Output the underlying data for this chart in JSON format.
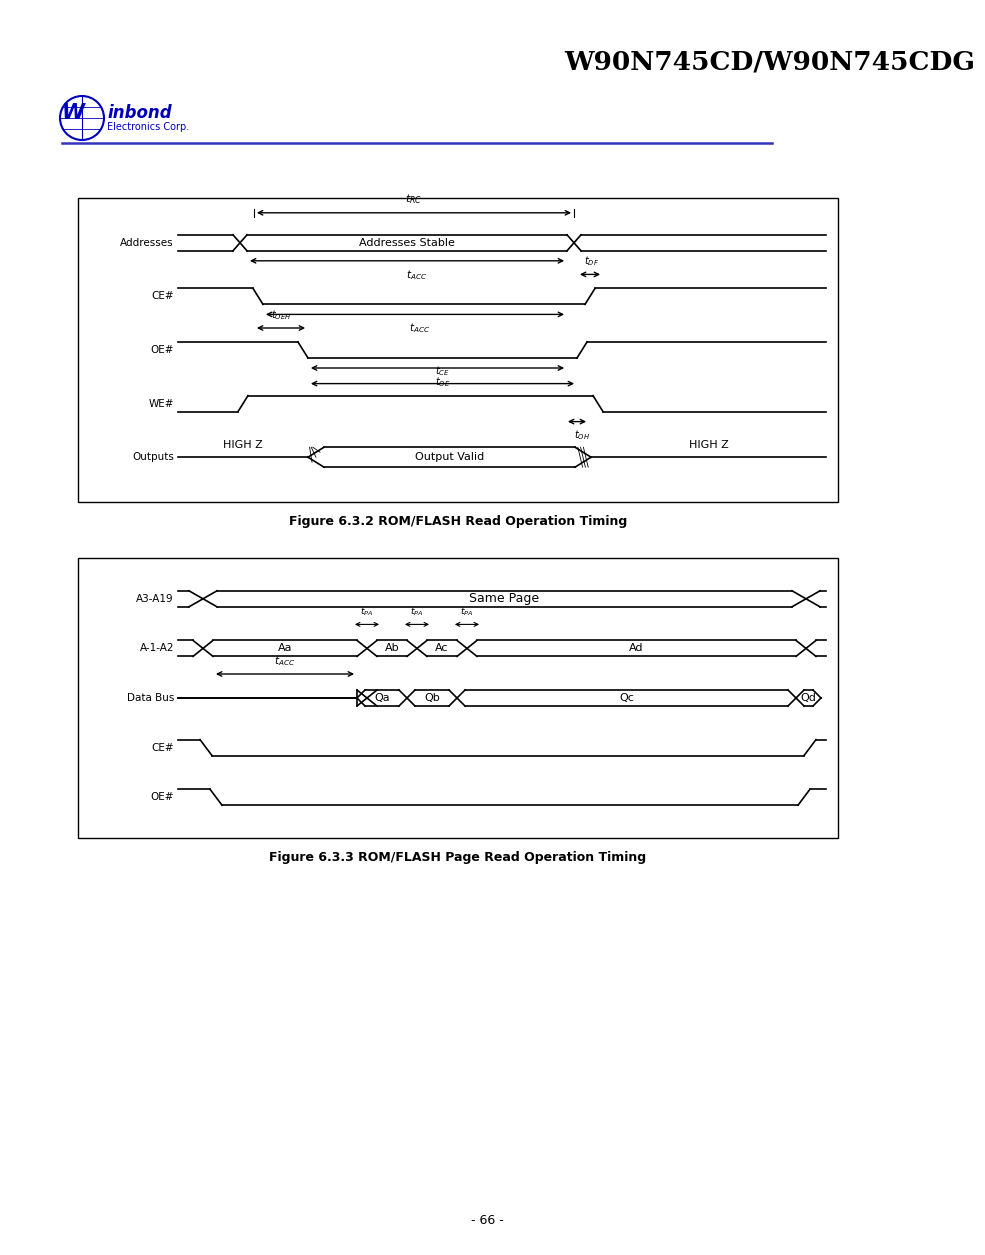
{
  "title": "W90N745CD/W90N745CDG",
  "page_number": "- 66 -",
  "fig1_caption": "Figure 6.3.2 ROM/FLASH Read Operation Timing",
  "fig2_caption": "Figure 6.3.3 ROM/FLASH Page Read Operation Timing",
  "bg_color": "#ffffff",
  "line_color": "#000000",
  "blue_color": "#0000bb",
  "header_line_color": "#3333bb"
}
